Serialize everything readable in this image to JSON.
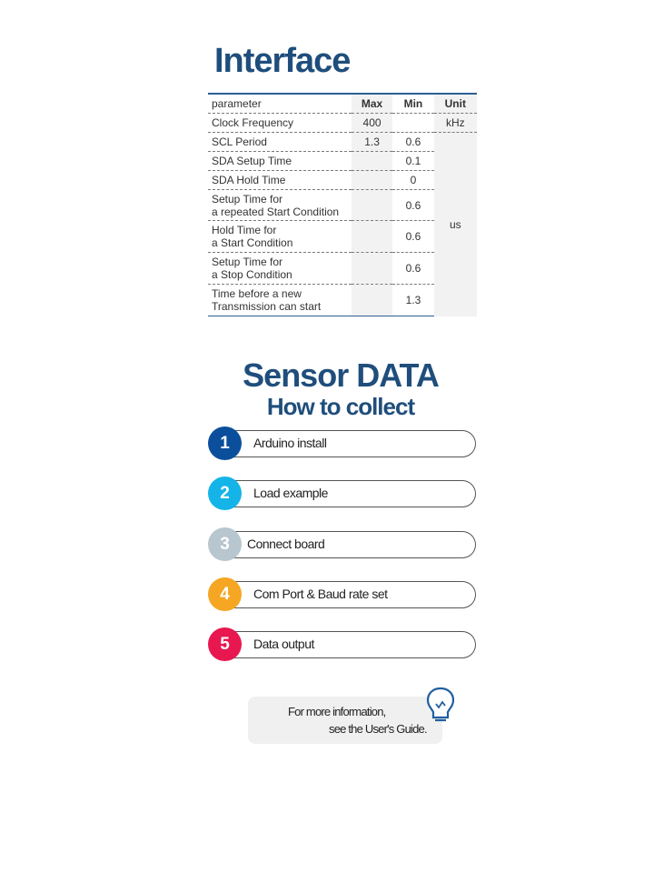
{
  "interface": {
    "title": "Interface",
    "headers": {
      "parameter": "parameter",
      "max": "Max",
      "min": "Min",
      "unit": "Unit"
    },
    "rows": [
      {
        "line1": "Clock Frequency",
        "line2": "",
        "max": "400",
        "min": "",
        "unit": "kHz"
      },
      {
        "line1": "SCL Period",
        "line2": "",
        "max": "1.3",
        "min": "0.6",
        "unit": ""
      },
      {
        "line1": "SDA Setup Time",
        "line2": "",
        "max": "",
        "min": "0.1",
        "unit": ""
      },
      {
        "line1": "SDA Hold Time",
        "line2": "",
        "max": "",
        "min": "0",
        "unit": ""
      },
      {
        "line1": "Setup Time for",
        "line2": "a repeated Start Condition",
        "max": "",
        "min": "0.6",
        "unit": ""
      },
      {
        "line1": "Hold Time for",
        "line2": "a Start Condition",
        "max": "",
        "min": "0.6",
        "unit": ""
      },
      {
        "line1": "Setup Time for",
        "line2": "a Stop Condition",
        "max": "",
        "min": "0.6",
        "unit": ""
      },
      {
        "line1": "Time before a new",
        "line2": "Transmission can start",
        "max": "",
        "min": "1.3",
        "unit": ""
      }
    ],
    "shared_unit": "us"
  },
  "sensor": {
    "title": "Sensor DATA",
    "subtitle": "How to collect",
    "steps": [
      {
        "num": "1",
        "label": "Arduino install",
        "color": "#0b4f9c"
      },
      {
        "num": "2",
        "label": "Load example",
        "color": "#14b4e8"
      },
      {
        "num": "3",
        "label": "Connect board",
        "color": "#b7c6cf"
      },
      {
        "num": "4",
        "label": "Com Port & Baud rate set",
        "color": "#f5a623"
      },
      {
        "num": "5",
        "label": "Data output",
        "color": "#e8174f"
      }
    ]
  },
  "info": {
    "line1": "For more information,",
    "line2": "see the User's Guide.",
    "icon": "lightbulb-icon"
  }
}
